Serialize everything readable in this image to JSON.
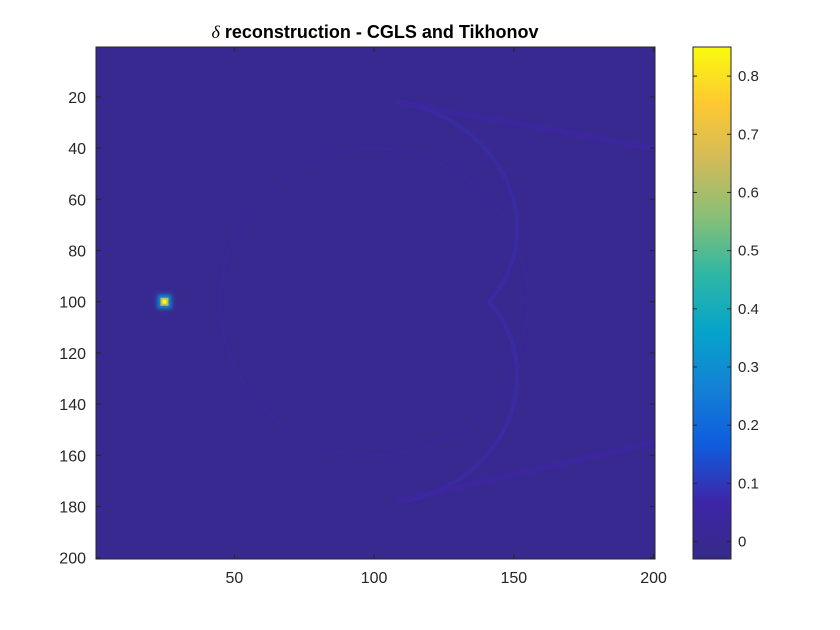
{
  "chart_data": {
    "type": "heatmap",
    "title_symbol": "δ",
    "title": "reconstruction - CGLS and Tikhonov",
    "xlabel": "",
    "ylabel": "",
    "xlim": [
      0.5,
      200.5
    ],
    "ylim": [
      0.5,
      200.5
    ],
    "y_reversed": true,
    "x_ticks": [
      50,
      100,
      150,
      200
    ],
    "y_ticks": [
      20,
      40,
      60,
      80,
      100,
      120,
      140,
      160,
      180,
      200
    ],
    "colormap": "parula",
    "color_range": [
      -0.03,
      0.85
    ],
    "colorbar_ticks": [
      0,
      0.1,
      0.2,
      0.3,
      0.4,
      0.5,
      0.6,
      0.7,
      0.8
    ],
    "background_value": 0.0,
    "peak": {
      "x": 25,
      "y": 100,
      "value": 0.85
    },
    "features": [
      {
        "name": "upper-arc",
        "description": "faint arc from (110,22) curving to cusp at (141,100)",
        "value": 0.08
      },
      {
        "name": "lower-arc",
        "description": "faint arc from cusp at (141,100) curving to (110,178)",
        "value": 0.08
      },
      {
        "name": "upper-streak",
        "description": "faint streak from (108,22) to (200,40)",
        "value": 0.05
      },
      {
        "name": "lower-streak",
        "description": "faint streak from (108,178) to (200,155)",
        "value": 0.05
      },
      {
        "name": "faint-circle",
        "description": "very faint circular ring centered near (100,100) radius about 55",
        "value": 0.02
      }
    ]
  },
  "colors": {
    "background_field": "#3e26a8",
    "axis": "#262626",
    "parula_stops": [
      "#352a87",
      "#3e26a8",
      "#0f5cdd",
      "#1481d6",
      "#06a4ca",
      "#2eb7a4",
      "#87bf77",
      "#d1bb59",
      "#fec832",
      "#f9fb0e"
    ]
  }
}
